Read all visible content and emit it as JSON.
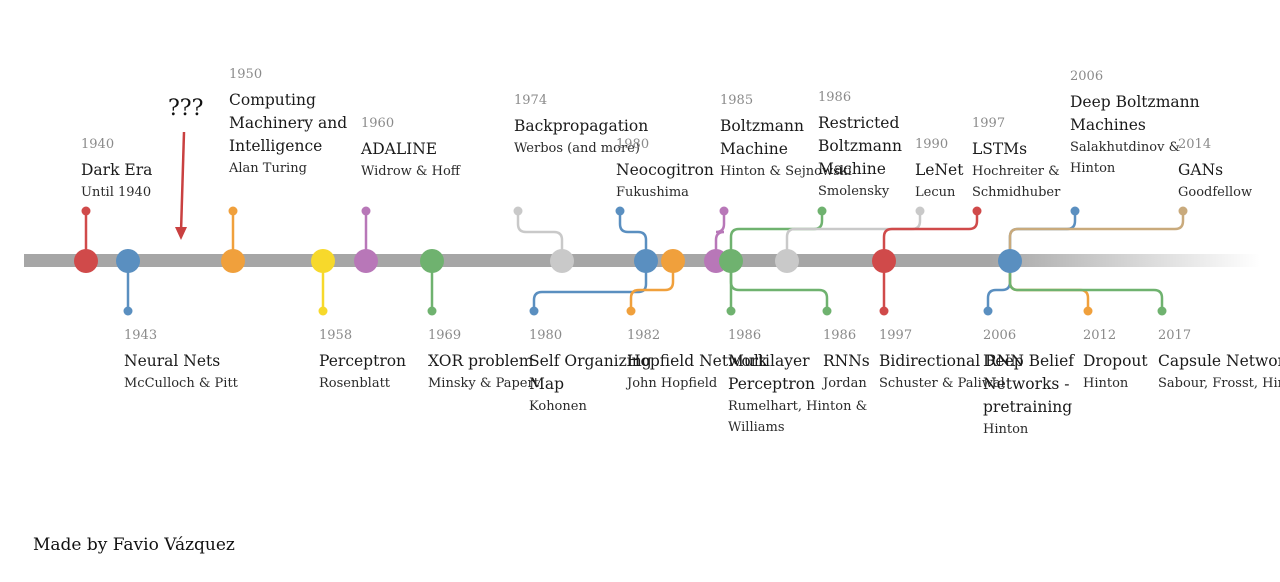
{
  "unknown_marker": {
    "label": "???",
    "arrow_color": "#c94040"
  },
  "credit": "Made by Favio Vázquez",
  "milestones": [
    {
      "id": "dark-era",
      "year": "1940",
      "title": "Dark Era",
      "author": "Until 1940",
      "color": "#d04a4a",
      "side": "top"
    },
    {
      "id": "neural-nets",
      "year": "1943",
      "title": "Neural Nets",
      "author": "McCulloch & Pitt",
      "color": "#5a8fc0",
      "side": "bottom"
    },
    {
      "id": "computing-machinery",
      "year": "1950",
      "title": "Computing Machinery and Intelligence",
      "author": "Alan Turing",
      "color": "#f0a03c",
      "side": "top"
    },
    {
      "id": "perceptron",
      "year": "1958",
      "title": "Perceptron",
      "author": "Rosenblatt",
      "color": "#f7d92b",
      "side": "bottom"
    },
    {
      "id": "adaline",
      "year": "1960",
      "title": "ADALINE",
      "author": "Widrow & Hoff",
      "color": "#b877b8",
      "side": "top"
    },
    {
      "id": "xor-problem",
      "year": "1969",
      "title": "XOR problem",
      "author": "Minsky & Papert",
      "color": "#6fb26f",
      "side": "bottom"
    },
    {
      "id": "backpropagation",
      "year": "1974",
      "title": "Backpropagation",
      "author": "Werbos (and more)",
      "color": "#c9c9c9",
      "side": "top"
    },
    {
      "id": "self-organizing-map",
      "year": "1980",
      "title": "Self Organizing Map",
      "author": "Kohonen",
      "color": "#5a8fc0",
      "side": "bottom"
    },
    {
      "id": "neocognitron",
      "year": "1980",
      "title": "Neocogitron",
      "author": "Fukushima",
      "color": "#5a8fc0",
      "side": "top"
    },
    {
      "id": "hopfield-network",
      "year": "1982",
      "title": "Hopfield Network",
      "author": "John Hopfield",
      "color": "#f0a03c",
      "side": "bottom"
    },
    {
      "id": "boltzmann-machine",
      "year": "1985",
      "title": "Boltzmann Machine",
      "author": "Hinton & Sejnowski",
      "color": "#b877b8",
      "side": "top"
    },
    {
      "id": "multilayer-perceptron",
      "year": "1986",
      "title": "Multilayer Perceptron",
      "author": "Rumelhart, Hinton & Williams",
      "color": "#6fb26f",
      "side": "bottom"
    },
    {
      "id": "restricted-boltzmann",
      "year": "1986",
      "title": "Restricted Boltzmann Machine",
      "author": "Smolensky",
      "color": "#6fb26f",
      "side": "top"
    },
    {
      "id": "rnns",
      "year": "1986",
      "title": "RNNs",
      "author": "Jordan",
      "color": "#6fb26f",
      "side": "bottom"
    },
    {
      "id": "lenet",
      "year": "1990",
      "title": "LeNet",
      "author": "Lecun",
      "color": "#c9c9c9",
      "side": "top"
    },
    {
      "id": "lstms",
      "year": "1997",
      "title": "LSTMs",
      "author": "Hochreiter & Schmidhuber",
      "color": "#d04a4a",
      "side": "top"
    },
    {
      "id": "bidirectional-rnn",
      "year": "1997",
      "title": "Bidirectional RNN",
      "author": "Schuster & Paliwal",
      "color": "#d04a4a",
      "side": "bottom"
    },
    {
      "id": "deep-belief-networks",
      "year": "2006",
      "title": "Deep Belief Networks - pretraining",
      "author": "Hinton",
      "color": "#5a8fc0",
      "side": "bottom"
    },
    {
      "id": "deep-boltzmann",
      "year": "2006",
      "title": "Deep Boltzmann Machines",
      "author": "Salakhutdinov & Hinton",
      "color": "#5a8fc0",
      "side": "top"
    },
    {
      "id": "dropout",
      "year": "2012",
      "title": "Dropout",
      "author": "Hinton",
      "color": "#f0a03c",
      "side": "bottom"
    },
    {
      "id": "gans",
      "year": "2014",
      "title": "GANs",
      "author": "Goodfellow",
      "color": "#c9aa7c",
      "side": "top"
    },
    {
      "id": "capsule-networks",
      "year": "2017",
      "title": "Capsule Networks",
      "author": "Sabour, Frosst, Hinton",
      "color": "#6fb26f",
      "side": "bottom"
    }
  ]
}
